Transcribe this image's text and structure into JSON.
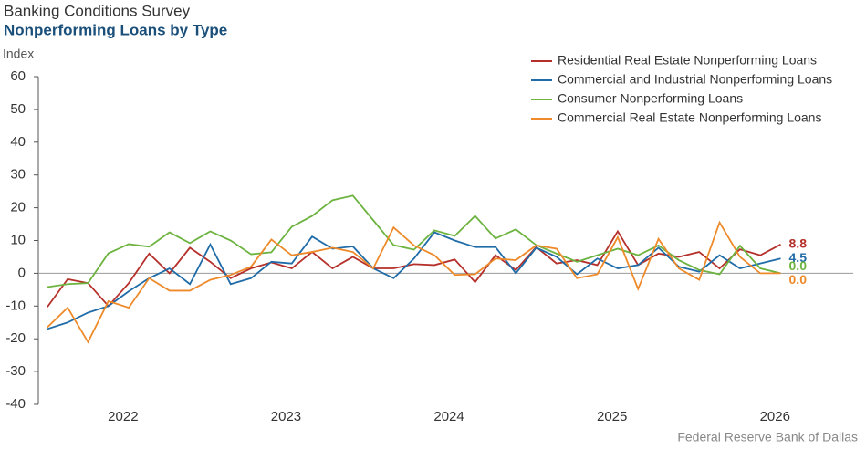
{
  "chart_data": {
    "type": "line",
    "title": "Banking Conditions Survey",
    "subtitle": "Nonperforming Loans by Type",
    "y_label": "Index",
    "source": "Federal Reserve Bank of Dallas",
    "x": [
      2021.535,
      2021.66,
      2021.785,
      2021.91,
      2022.035,
      2022.16,
      2022.285,
      2022.41,
      2022.535,
      2022.66,
      2022.785,
      2022.91,
      2023.035,
      2023.16,
      2023.285,
      2023.41,
      2023.535,
      2023.66,
      2023.785,
      2023.91,
      2024.035,
      2024.16,
      2024.285,
      2024.41,
      2024.535,
      2024.66,
      2024.785,
      2024.91,
      2025.035,
      2025.16,
      2025.285,
      2025.41,
      2025.535,
      2025.66,
      2025.785,
      2025.91,
      2026.035
    ],
    "xlim": [
      2021.48,
      2026.48
    ],
    "xticks": [
      2022,
      2023,
      2024,
      2025,
      2026
    ],
    "ylim": [
      -40,
      60
    ],
    "yticks": [
      -40,
      -30,
      -20,
      -10,
      0,
      10,
      20,
      30,
      40,
      50,
      60
    ],
    "legend": "top-right",
    "series": [
      {
        "name": "Residential Real Estate Nonperforming Loans",
        "color": "#b5302a",
        "values": [
          -10.3,
          -1.8,
          -3,
          -10,
          -3,
          6,
          0,
          7.8,
          3.5,
          -1.5,
          1.5,
          3.3,
          1.5,
          6.5,
          1.5,
          5,
          1.5,
          1.5,
          2.8,
          2.5,
          4.2,
          -2.7,
          5.5,
          1,
          8,
          3,
          4,
          2.5,
          12.8,
          2.5,
          6,
          5,
          6.5,
          1.5,
          7.3,
          5.5,
          8.8
        ],
        "value_labels": [
          null,
          null,
          null,
          null,
          null,
          null,
          null,
          null,
          null,
          null,
          null,
          null,
          null,
          null,
          null,
          null,
          null,
          null,
          null,
          null,
          null,
          null,
          null,
          null,
          null,
          null,
          null,
          null,
          null,
          null,
          null,
          null,
          null,
          null,
          null,
          null,
          "8.8"
        ]
      },
      {
        "name": "Commercial and Industrial Nonperforming Loans",
        "color": "#1f6ca8",
        "values": [
          -17,
          -15,
          -12,
          -10,
          -5.5,
          -1.5,
          1.5,
          -3.3,
          8.8,
          -3.3,
          -1.5,
          3.5,
          3,
          11.2,
          7.5,
          8.2,
          1.5,
          -1.5,
          4.5,
          12.5,
          10,
          8,
          8,
          0,
          7.8,
          5,
          -0.3,
          4.5,
          1.5,
          2.5,
          7.8,
          2,
          0.5,
          5.5,
          1.5,
          3,
          4.5
        ],
        "value_labels": [
          null,
          null,
          null,
          null,
          null,
          null,
          null,
          null,
          null,
          null,
          null,
          null,
          null,
          null,
          null,
          null,
          null,
          null,
          null,
          null,
          null,
          null,
          null,
          null,
          null,
          null,
          null,
          null,
          null,
          null,
          null,
          null,
          null,
          null,
          null,
          null,
          "4.5"
        ]
      },
      {
        "name": "Consumer Nonperforming Loans",
        "color": "#6cb33f",
        "values": [
          -4.2,
          -3.3,
          -3,
          6.1,
          8.9,
          8.1,
          12.5,
          9.2,
          12.8,
          10,
          5.8,
          6.4,
          14.2,
          17.5,
          22.3,
          23.7,
          16.2,
          8.6,
          7.2,
          13.1,
          11.4,
          17.5,
          10.6,
          13.4,
          8.6,
          6,
          3.5,
          5.5,
          7.5,
          5.5,
          8.5,
          4,
          1,
          -0.3,
          8.4,
          1.5,
          0
        ],
        "value_labels": [
          null,
          null,
          null,
          null,
          null,
          null,
          null,
          null,
          null,
          null,
          null,
          null,
          null,
          null,
          null,
          null,
          null,
          null,
          null,
          null,
          null,
          null,
          null,
          null,
          null,
          null,
          null,
          null,
          null,
          null,
          null,
          null,
          null,
          null,
          null,
          null,
          "0.0"
        ]
      },
      {
        "name": "Commercial Real Estate Nonperforming Loans",
        "color": "#ee8a2a",
        "values": [
          -16.5,
          -10.5,
          -21,
          -8.5,
          -10.5,
          -1.5,
          -5.3,
          -5.3,
          -2,
          -0.5,
          2,
          10.3,
          5.5,
          6.5,
          7.8,
          6.5,
          1.5,
          14,
          8.5,
          5.5,
          -0.5,
          -0.3,
          4.5,
          4,
          8.5,
          7.5,
          -1.5,
          -0.3,
          11,
          -4.8,
          10.5,
          1.5,
          -2,
          15.5,
          5,
          0,
          0
        ],
        "value_labels": [
          null,
          null,
          null,
          null,
          null,
          null,
          null,
          null,
          null,
          null,
          null,
          null,
          null,
          null,
          null,
          null,
          null,
          null,
          null,
          null,
          null,
          null,
          null,
          null,
          null,
          null,
          null,
          null,
          null,
          null,
          null,
          null,
          null,
          null,
          null,
          null,
          "0.0"
        ]
      }
    ]
  }
}
